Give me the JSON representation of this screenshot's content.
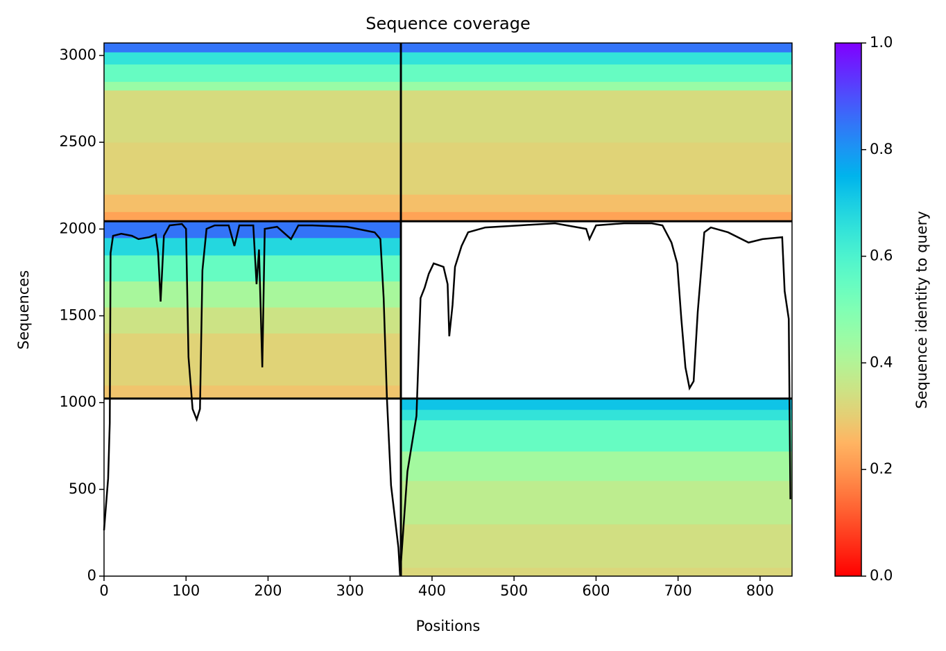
{
  "chart_data": {
    "type": "msa_coverage",
    "title": "Sequence coverage",
    "xlabel": "Positions",
    "ylabel": "Sequences",
    "xlim": [
      0,
      839
    ],
    "ylim": [
      0,
      3072
    ],
    "xticks": [
      0,
      100,
      200,
      300,
      400,
      500,
      600,
      700,
      800
    ],
    "yticks": [
      0,
      500,
      1000,
      1500,
      2000,
      2500,
      3000
    ],
    "colorbar": {
      "label": "Sequence identity to query",
      "lim": [
        0,
        1
      ],
      "ticks": [
        {
          "value": 0,
          "label": "0.0"
        },
        {
          "value": 0.2,
          "label": "0.2"
        },
        {
          "value": 0.4,
          "label": "0.4"
        },
        {
          "value": 0.6,
          "label": "0.6"
        },
        {
          "value": 0.8,
          "label": "0.8"
        },
        {
          "value": 1,
          "label": "1.0"
        }
      ]
    },
    "blocks": [
      {
        "x": [
          0,
          839
        ],
        "edges": [
          2045,
          2100,
          2200,
          2500,
          2800,
          2850,
          2950,
          3020,
          3072
        ],
        "identity": [
          0.22,
          0.27,
          0.31,
          0.33,
          0.45,
          0.55,
          0.65,
          0.85
        ]
      },
      {
        "x": [
          0,
          362
        ],
        "edges": [
          1023,
          1100,
          1400,
          1550,
          1700,
          1850,
          1950,
          2045
        ],
        "identity": [
          0.28,
          0.31,
          0.35,
          0.42,
          0.55,
          0.68,
          0.85
        ]
      },
      {
        "x": [
          362,
          839
        ],
        "edges": [
          0,
          50,
          300,
          550,
          720,
          900,
          960,
          1023
        ],
        "identity": [
          0.32,
          0.34,
          0.38,
          0.43,
          0.55,
          0.65,
          0.72
        ]
      }
    ],
    "chain_breaks_x": [
      362
    ],
    "chain_breaks_y": [
      1023,
      2045
    ],
    "line_color": "#000000",
    "coverage": {
      "x": [
        0,
        3,
        5,
        7,
        8,
        11,
        21,
        34,
        42,
        55,
        63,
        66,
        69,
        73,
        80,
        95,
        100,
        103,
        108,
        113,
        117,
        120,
        125,
        135,
        152,
        159,
        165,
        182,
        186,
        189,
        193,
        196,
        211,
        228,
        237,
        254,
        296,
        330,
        337,
        341,
        345,
        350,
        355,
        359,
        361,
        364,
        370,
        381,
        386,
        391,
        396,
        402,
        414,
        419,
        421,
        425,
        428,
        436,
        444,
        465,
        507,
        550,
        588,
        592,
        600,
        634,
        668,
        681,
        692,
        699,
        704,
        709,
        714,
        719,
        724,
        732,
        740,
        761,
        786,
        803,
        827,
        830,
        835,
        837
      ],
      "values": [
        264,
        443,
        563,
        883,
        1862,
        1961,
        1973,
        1961,
        1942,
        1953,
        1969,
        1862,
        1582,
        1961,
        2021,
        2029,
        2001,
        1262,
        963,
        903,
        963,
        1762,
        2001,
        2021,
        2021,
        1902,
        2021,
        2021,
        1682,
        1882,
        1203,
        2001,
        2013,
        1942,
        2021,
        2021,
        2013,
        1981,
        1942,
        1602,
        1023,
        523,
        324,
        164,
        4,
        204,
        603,
        923,
        1602,
        1662,
        1742,
        1802,
        1782,
        1682,
        1382,
        1562,
        1782,
        1902,
        1981,
        2009,
        2021,
        2033,
        2001,
        1942,
        2021,
        2033,
        2033,
        2021,
        1922,
        1802,
        1482,
        1203,
        1083,
        1123,
        1522,
        1981,
        2009,
        1981,
        1922,
        1942,
        1953,
        1642,
        1482,
        443
      ]
    }
  }
}
